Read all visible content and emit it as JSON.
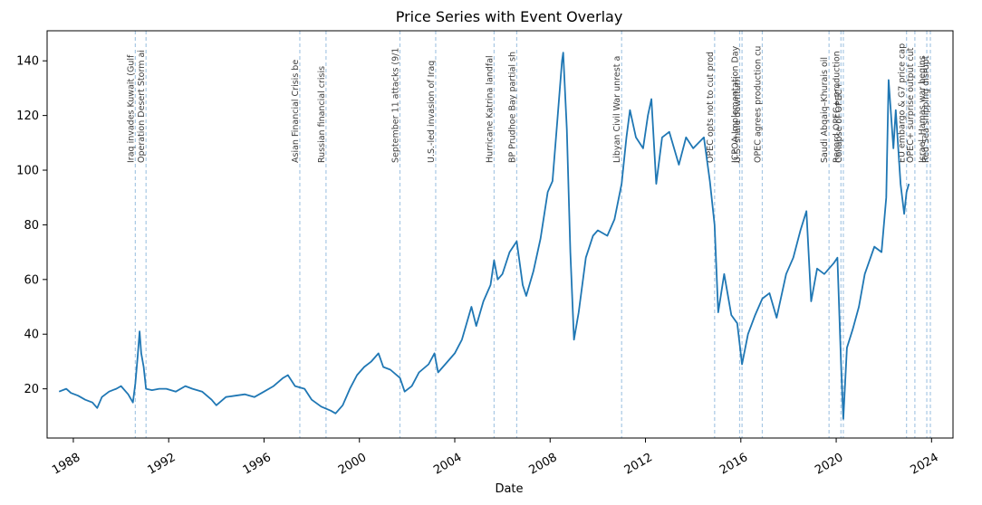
{
  "chart_data": {
    "type": "line",
    "title": "Price Series with Event Overlay",
    "xlabel": "Date",
    "ylabel": "",
    "xlim": [
      1986.9,
      2024.9
    ],
    "ylim": [
      2,
      151
    ],
    "grid": false,
    "x_ticks": [
      1988,
      1992,
      1996,
      2000,
      2004,
      2008,
      2012,
      2016,
      2020,
      2024
    ],
    "y_ticks": [
      20,
      40,
      60,
      80,
      100,
      120,
      140
    ],
    "series": [
      {
        "color": "#1f77b4",
        "points": [
          [
            1987.4,
            19
          ],
          [
            1987.7,
            20
          ],
          [
            1987.9,
            18.5
          ],
          [
            1988.2,
            17.5
          ],
          [
            1988.5,
            16
          ],
          [
            1988.8,
            15
          ],
          [
            1989.0,
            13
          ],
          [
            1989.2,
            17
          ],
          [
            1989.5,
            19
          ],
          [
            1989.8,
            20
          ],
          [
            1990.0,
            21
          ],
          [
            1990.3,
            18
          ],
          [
            1990.5,
            15
          ],
          [
            1990.6,
            22
          ],
          [
            1990.7,
            32
          ],
          [
            1990.78,
            41
          ],
          [
            1990.85,
            33
          ],
          [
            1990.95,
            28
          ],
          [
            1991.05,
            20
          ],
          [
            1991.3,
            19.5
          ],
          [
            1991.6,
            20
          ],
          [
            1991.9,
            20
          ],
          [
            1992.3,
            19
          ],
          [
            1992.7,
            21
          ],
          [
            1993.0,
            20
          ],
          [
            1993.4,
            19
          ],
          [
            1993.8,
            16
          ],
          [
            1994.0,
            14
          ],
          [
            1994.4,
            17
          ],
          [
            1994.8,
            17.5
          ],
          [
            1995.2,
            18
          ],
          [
            1995.6,
            17
          ],
          [
            1996.0,
            19
          ],
          [
            1996.4,
            21
          ],
          [
            1996.8,
            24
          ],
          [
            1997.0,
            25
          ],
          [
            1997.3,
            21
          ],
          [
            1997.7,
            20
          ],
          [
            1998.0,
            16
          ],
          [
            1998.4,
            13.5
          ],
          [
            1998.8,
            12
          ],
          [
            1999.0,
            11
          ],
          [
            1999.3,
            14
          ],
          [
            1999.6,
            20
          ],
          [
            1999.9,
            25
          ],
          [
            2000.2,
            28
          ],
          [
            2000.5,
            30
          ],
          [
            2000.8,
            33
          ],
          [
            2001.0,
            28
          ],
          [
            2001.3,
            27
          ],
          [
            2001.7,
            24
          ],
          [
            2001.9,
            19
          ],
          [
            2002.2,
            21
          ],
          [
            2002.5,
            26
          ],
          [
            2002.9,
            29
          ],
          [
            2003.15,
            33
          ],
          [
            2003.3,
            26
          ],
          [
            2003.6,
            29
          ],
          [
            2004.0,
            33
          ],
          [
            2004.3,
            38
          ],
          [
            2004.7,
            50
          ],
          [
            2004.9,
            43
          ],
          [
            2005.2,
            52
          ],
          [
            2005.5,
            58
          ],
          [
            2005.65,
            67
          ],
          [
            2005.8,
            60
          ],
          [
            2006.0,
            62
          ],
          [
            2006.3,
            70
          ],
          [
            2006.6,
            74
          ],
          [
            2006.85,
            58
          ],
          [
            2007.0,
            54
          ],
          [
            2007.3,
            63
          ],
          [
            2007.6,
            75
          ],
          [
            2007.9,
            92
          ],
          [
            2008.1,
            96
          ],
          [
            2008.3,
            118
          ],
          [
            2008.5,
            140
          ],
          [
            2008.55,
            143
          ],
          [
            2008.7,
            115
          ],
          [
            2008.85,
            70
          ],
          [
            2009.0,
            38
          ],
          [
            2009.2,
            48
          ],
          [
            2009.5,
            68
          ],
          [
            2009.8,
            76
          ],
          [
            2010.0,
            78
          ],
          [
            2010.4,
            76
          ],
          [
            2010.7,
            82
          ],
          [
            2011.0,
            95
          ],
          [
            2011.2,
            112
          ],
          [
            2011.35,
            122
          ],
          [
            2011.6,
            112
          ],
          [
            2011.9,
            108
          ],
          [
            2012.1,
            120
          ],
          [
            2012.25,
            126
          ],
          [
            2012.45,
            95
          ],
          [
            2012.7,
            112
          ],
          [
            2013.0,
            114
          ],
          [
            2013.4,
            102
          ],
          [
            2013.7,
            112
          ],
          [
            2014.0,
            108
          ],
          [
            2014.45,
            112
          ],
          [
            2014.7,
            96
          ],
          [
            2014.9,
            80
          ],
          [
            2015.05,
            48
          ],
          [
            2015.3,
            62
          ],
          [
            2015.6,
            47
          ],
          [
            2015.85,
            44
          ],
          [
            2016.05,
            29
          ],
          [
            2016.3,
            40
          ],
          [
            2016.6,
            47
          ],
          [
            2016.9,
            53
          ],
          [
            2017.2,
            55
          ],
          [
            2017.5,
            46
          ],
          [
            2017.9,
            62
          ],
          [
            2018.2,
            68
          ],
          [
            2018.5,
            78
          ],
          [
            2018.75,
            85
          ],
          [
            2018.95,
            52
          ],
          [
            2019.2,
            64
          ],
          [
            2019.5,
            62
          ],
          [
            2019.9,
            66
          ],
          [
            2020.05,
            68
          ],
          [
            2020.2,
            30
          ],
          [
            2020.3,
            9
          ],
          [
            2020.45,
            35
          ],
          [
            2020.7,
            42
          ],
          [
            2020.95,
            50
          ],
          [
            2021.2,
            62
          ],
          [
            2021.6,
            72
          ],
          [
            2021.9,
            70
          ],
          [
            2022.1,
            90
          ],
          [
            2022.2,
            133
          ],
          [
            2022.4,
            108
          ],
          [
            2022.5,
            122
          ],
          [
            2022.7,
            95
          ],
          [
            2022.85,
            84
          ],
          [
            2022.95,
            92
          ],
          [
            2023.05,
            95
          ]
        ]
      }
    ],
    "events": [
      {
        "x": 1990.6,
        "label": "Iraq invades Kuwait (Gulf"
      },
      {
        "x": 1991.05,
        "label": "Operation Desert Storm ai"
      },
      {
        "x": 1997.5,
        "label": "Asian Financial Crisis be"
      },
      {
        "x": 1998.6,
        "label": "Russian financial crisis"
      },
      {
        "x": 2001.7,
        "label": "September 11 attacks (9/1"
      },
      {
        "x": 2003.2,
        "label": "U.S.-led invasion of Iraq"
      },
      {
        "x": 2005.65,
        "label": "Hurricane Katrina landfal"
      },
      {
        "x": 2006.6,
        "label": "BP Prudhoe Bay partial sh"
      },
      {
        "x": 2011.0,
        "label": "Libyan Civil War unrest a"
      },
      {
        "x": 2014.9,
        "label": "OPEC opts not to cut prod"
      },
      {
        "x": 2015.95,
        "label": "JCPOA Implementation Day"
      },
      {
        "x": 2016.05,
        "label": "U.S. shale downturn"
      },
      {
        "x": 2016.9,
        "label": "OPEC agrees production cu"
      },
      {
        "x": 2019.7,
        "label": "Saudi Abqaiq–Khurais oil"
      },
      {
        "x": 2020.2,
        "label": "Record OPEC+ production"
      },
      {
        "x": 2020.3,
        "label": "Collapse of OPEC+"
      },
      {
        "x": 2022.95,
        "label": "EU embargo & G7 price cap"
      },
      {
        "x": 2023.3,
        "label": "OPEC+ surprise output cut"
      },
      {
        "x": 2023.8,
        "label": "Israel–Hamas war begins"
      },
      {
        "x": 2023.95,
        "label": "Red Sea shipping disrupt"
      }
    ],
    "colors": {
      "line": "#1f77b4",
      "event_line": "#a8c8e4"
    }
  }
}
